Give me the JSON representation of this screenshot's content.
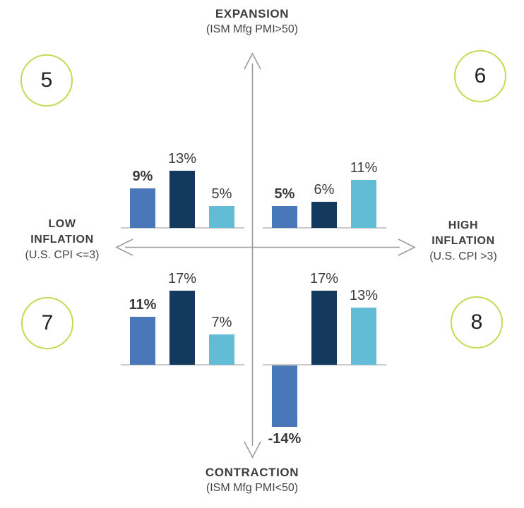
{
  "chart_data": {
    "type": "bar",
    "layout": "four-quadrant-grid",
    "grid": false,
    "legend": "none",
    "axes": {
      "top": {
        "title": "EXPANSION",
        "subtitle": "(ISM Mfg PMI>50)"
      },
      "bottom": {
        "title": "CONTRACTION",
        "subtitle": "(ISM Mfg PMI<50)"
      },
      "left": {
        "line1": "LOW",
        "line2": "INFLATION",
        "subtitle": "(U.S. CPI <=3)"
      },
      "right": {
        "line1": "HIGH",
        "line2": "INFLATION",
        "subtitle": "(U.S. CPI >3)"
      }
    },
    "series_colors": [
      "#4a77b8",
      "#14395f",
      "#63bcd6"
    ],
    "colors": {
      "axis_line": "#9c9c98",
      "baseline": "#cbcbcb",
      "circle_border": "#c6d952",
      "text": "#3d3d3f"
    },
    "value_unit": "%",
    "quadrants": [
      {
        "number": "5",
        "position": "top-left",
        "bars": [
          {
            "label": "9%",
            "value": 9,
            "bold": true
          },
          {
            "label": "13%",
            "value": 13,
            "bold": false
          },
          {
            "label": "5%",
            "value": 5,
            "bold": false
          }
        ]
      },
      {
        "number": "6",
        "position": "top-right",
        "bars": [
          {
            "label": "5%",
            "value": 5,
            "bold": true
          },
          {
            "label": "6%",
            "value": 6,
            "bold": false
          },
          {
            "label": "11%",
            "value": 11,
            "bold": false
          }
        ]
      },
      {
        "number": "7",
        "position": "bottom-left",
        "bars": [
          {
            "label": "11%",
            "value": 11,
            "bold": true
          },
          {
            "label": "17%",
            "value": 17,
            "bold": false
          },
          {
            "label": "7%",
            "value": 7,
            "bold": false
          }
        ]
      },
      {
        "number": "8",
        "position": "bottom-right",
        "bars": [
          {
            "label": "-14%",
            "value": -14,
            "bold": true
          },
          {
            "label": "17%",
            "value": 17,
            "bold": false
          },
          {
            "label": "13%",
            "value": 13,
            "bold": false
          }
        ]
      }
    ]
  }
}
